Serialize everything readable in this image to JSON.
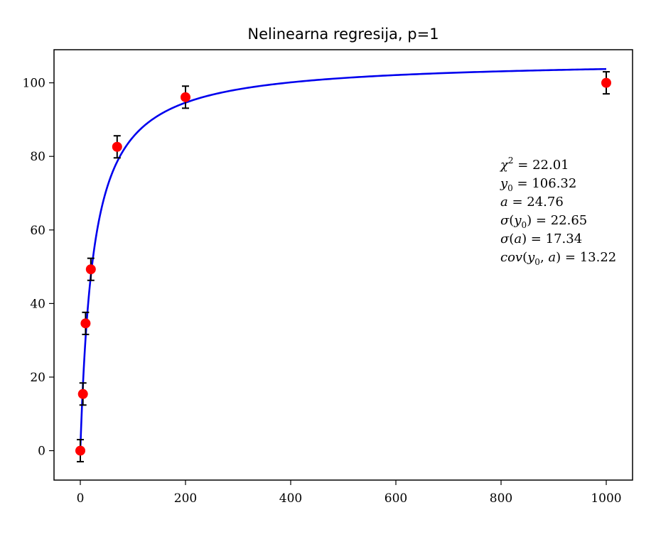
{
  "chart_data": {
    "type": "scatter",
    "title": "Nelinearna regresija, p=1",
    "xlabel": "",
    "ylabel": "",
    "xlim": [
      -50,
      1050
    ],
    "ylim": [
      -8,
      109
    ],
    "x_ticks": [
      0,
      200,
      400,
      600,
      800,
      1000
    ],
    "y_ticks": [
      0,
      20,
      40,
      60,
      80,
      100
    ],
    "grid": false,
    "points": {
      "color": "#ff0000",
      "x": [
        0,
        5,
        10,
        20,
        70,
        200,
        1000
      ],
      "y": [
        0,
        15.4,
        34.6,
        49.3,
        82.6,
        96.1,
        100
      ],
      "yerr": [
        3,
        3,
        3,
        3,
        3,
        3,
        3
      ]
    },
    "fit": {
      "color": "#0000ee",
      "model": "y0*x/(a+x)",
      "y0": 106.32,
      "a": 24.76,
      "x_range": [
        0,
        1000
      ]
    },
    "annotations": [
      {
        "math": "chi2",
        "value": "22.01"
      },
      {
        "math": "y0",
        "value": "106.32"
      },
      {
        "math": "a",
        "value": "24.76"
      },
      {
        "math": "sigma_y0",
        "value": "22.65"
      },
      {
        "math": "sigma_a",
        "value": "17.34"
      },
      {
        "math": "cov",
        "value": "13.22"
      }
    ]
  }
}
